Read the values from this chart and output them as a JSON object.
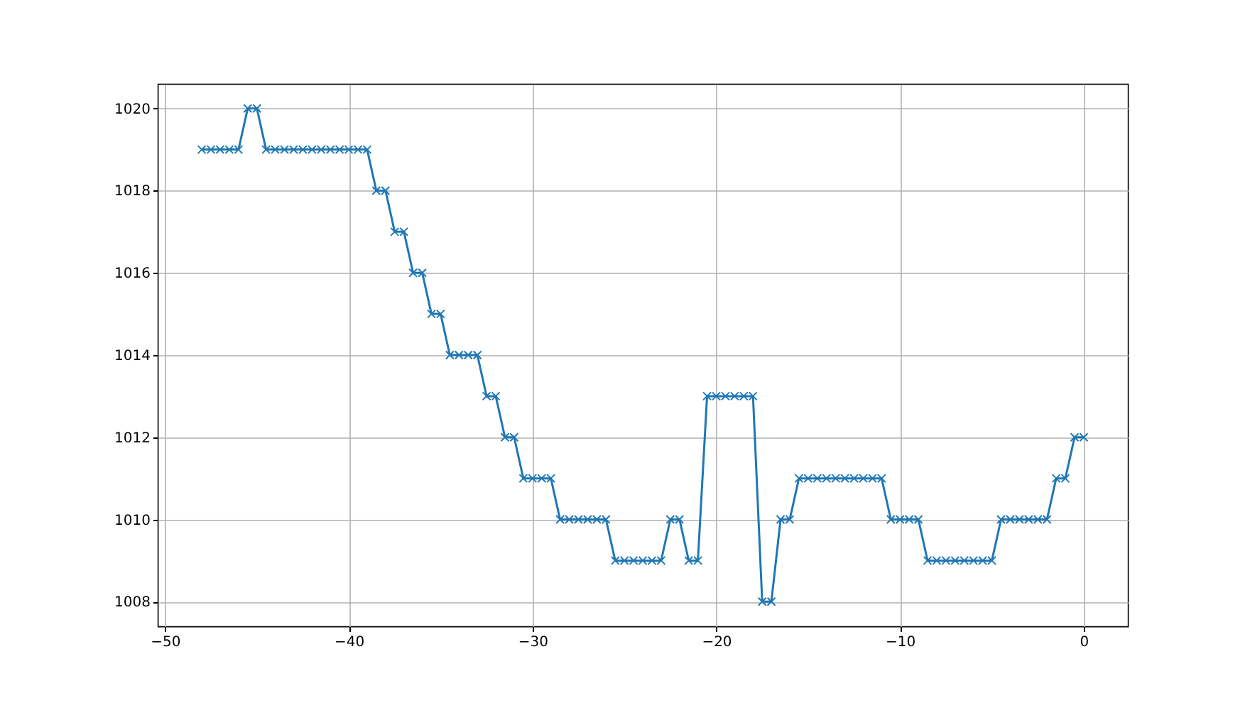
{
  "chart_data": {
    "type": "line",
    "x": [
      -48,
      -47.5,
      -47,
      -46.5,
      -46,
      -45.5,
      -45,
      -44.5,
      -44,
      -43.5,
      -43,
      -42.5,
      -42,
      -41.5,
      -41,
      -40.5,
      -40,
      -39.5,
      -39,
      -38.5,
      -38,
      -37.5,
      -37,
      -36.5,
      -36,
      -35.5,
      -35,
      -34.5,
      -34,
      -33.5,
      -33,
      -32.5,
      -32,
      -31.5,
      -31,
      -30.5,
      -30,
      -29.5,
      -29,
      -28.5,
      -28,
      -27.5,
      -27,
      -26.5,
      -26,
      -25.5,
      -25,
      -24.5,
      -24,
      -23.5,
      -23,
      -22.5,
      -22,
      -21.5,
      -21,
      -20.5,
      -20,
      -19.5,
      -19,
      -18.5,
      -18,
      -17.5,
      -17,
      -16.5,
      -16,
      -15.5,
      -15,
      -14.5,
      -14,
      -13.5,
      -13,
      -12.5,
      -12,
      -11.5,
      -11,
      -10.5,
      -10,
      -9.5,
      -9,
      -8.5,
      -8,
      -7.5,
      -7,
      -6.5,
      -6,
      -5.5,
      -5,
      -4.5,
      -4,
      -3.5,
      -3,
      -2.5,
      -2,
      -1.5,
      -1,
      -0.5,
      0
    ],
    "series": [
      {
        "color": "#1f77b4",
        "values": [
          1019,
          1019,
          1019,
          1019,
          1019,
          1020,
          1020,
          1019,
          1019,
          1019,
          1019,
          1019,
          1019,
          1019,
          1019,
          1019,
          1019,
          1019,
          1019,
          1018,
          1018,
          1017,
          1017,
          1016,
          1016,
          1015,
          1015,
          1014,
          1014,
          1014,
          1014,
          1013,
          1013,
          1012,
          1012,
          1011,
          1011,
          1011,
          1011,
          1010,
          1010,
          1010,
          1010,
          1010,
          1010,
          1009,
          1009,
          1009,
          1009,
          1009,
          1009,
          1010,
          1010,
          1009,
          1009,
          1013,
          1013,
          1013,
          1013,
          1013,
          1013,
          1008,
          1008,
          1010,
          1010,
          1011,
          1011,
          1011,
          1011,
          1011,
          1011,
          1011,
          1011,
          1011,
          1011,
          1010,
          1010,
          1010,
          1010,
          1009,
          1009,
          1009,
          1009,
          1009,
          1009,
          1009,
          1009,
          1010,
          1010,
          1010,
          1010,
          1010,
          1010,
          1011,
          1011,
          1012,
          1012
        ]
      }
    ],
    "xlim": [
      -50.4,
      2.4
    ],
    "xticks": [
      -50,
      -40,
      -30,
      -20,
      -10,
      0
    ],
    "ylim": [
      1007.4,
      1020.6
    ],
    "yticks": [
      1008,
      1010,
      1012,
      1014,
      1016,
      1018,
      1020
    ],
    "grid": true,
    "marker": "cross",
    "line_style": "solid"
  }
}
